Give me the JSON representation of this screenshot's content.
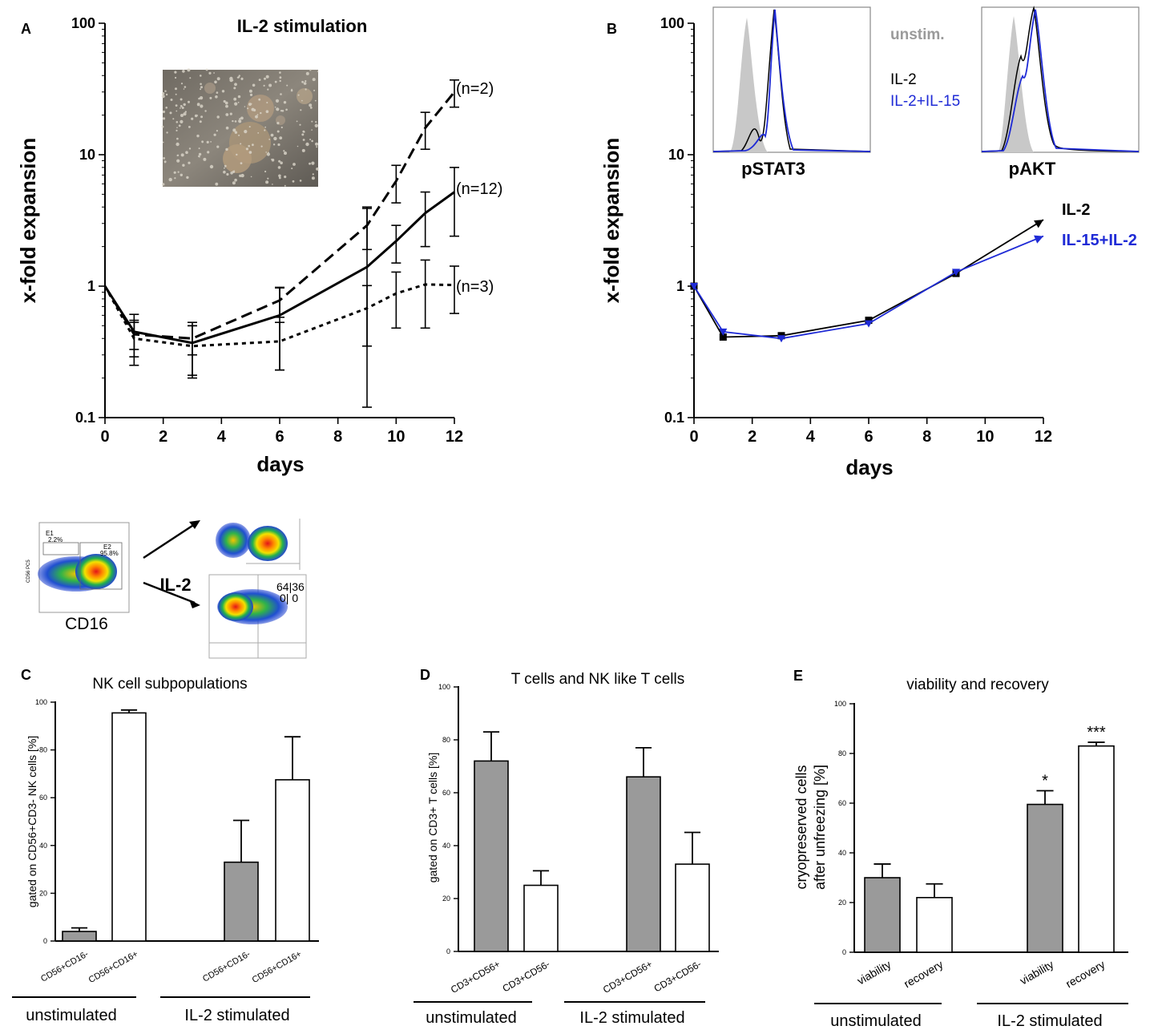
{
  "colors": {
    "ink": "#000000",
    "blue": "#1f2bd6",
    "gray_bar": "#9a9a9a",
    "unstim": "#9a9a9a",
    "hist_fill": "#c8c8c8"
  },
  "panels": {
    "A": "A",
    "B": "B",
    "C": "C",
    "D": "D",
    "E": "E"
  },
  "flow": {
    "il2": "IL-2",
    "cd16": "CD16",
    "y_axis": "CD56 PC5",
    "e1": "E1",
    "e1_pct": "2.2%",
    "e2": "E2",
    "e2_pct": "95.8%",
    "q_top": "64|36",
    "q_bot": "0| 0"
  },
  "chart_data": [
    {
      "id": "A",
      "type": "line",
      "title": "IL-2 stimulation",
      "xlabel": "days",
      "ylabel": "x-fold expansion",
      "yscale": "log",
      "xlim": [
        0,
        12
      ],
      "ylim": [
        0.1,
        100
      ],
      "xticks": [
        "0",
        "2",
        "4",
        "6",
        "8",
        "10",
        "12"
      ],
      "yticks": [
        "0.1",
        "1",
        "10",
        "100"
      ],
      "inset": "cell culture micrograph",
      "series": [
        {
          "name": "(n=2)",
          "style": "dashed",
          "x": [
            0,
            1,
            3,
            6,
            9,
            10,
            11,
            12
          ],
          "y": [
            1,
            0.43,
            0.4,
            0.78,
            2.9,
            6.3,
            16,
            30
          ],
          "err": [
            0,
            0.1,
            0.1,
            0.2,
            1.0,
            2.0,
            5,
            7
          ]
        },
        {
          "name": "(n=12)",
          "style": "solid",
          "x": [
            0,
            1,
            3,
            6,
            9,
            10,
            11,
            12
          ],
          "y": [
            1,
            0.45,
            0.37,
            0.6,
            1.4,
            2.2,
            3.6,
            5.2
          ],
          "err": [
            0,
            0.16,
            0.16,
            0.37,
            2.6,
            0.7,
            1.6,
            2.8
          ]
        },
        {
          "name": "(n=3)",
          "style": "dotted",
          "x": [
            0,
            1,
            3,
            6,
            9,
            10,
            11,
            12
          ],
          "y": [
            1,
            0.4,
            0.35,
            0.38,
            0.68,
            0.88,
            1.03,
            1.02
          ],
          "err": [
            0,
            0.15,
            0.15,
            0.15,
            0.33,
            0.4,
            0.55,
            0.4
          ]
        }
      ]
    },
    {
      "id": "B",
      "type": "line",
      "title": "",
      "xlabel": "days",
      "ylabel": "x-fold expansion",
      "yscale": "log",
      "xlim": [
        0,
        12
      ],
      "ylim": [
        0.1,
        100
      ],
      "xticks": [
        "0",
        "2",
        "4",
        "6",
        "8",
        "10",
        "12"
      ],
      "yticks": [
        "0.1",
        "1",
        "10",
        "100"
      ],
      "series": [
        {
          "name": "IL-2",
          "color": "#000000",
          "x": [
            0,
            1,
            3,
            6,
            9,
            12
          ],
          "y": [
            1,
            0.41,
            0.42,
            0.55,
            1.25,
            3.2
          ]
        },
        {
          "name": "IL-15+IL-2",
          "color": "#1f2bd6",
          "x": [
            0,
            1,
            3,
            6,
            9,
            12
          ],
          "y": [
            1,
            0.45,
            0.4,
            0.52,
            1.28,
            2.4
          ]
        }
      ],
      "inset_legend": [
        "unstim.",
        "IL-2",
        "IL-2+IL-15"
      ],
      "histograms": [
        "pSTAT3",
        "pAKT"
      ]
    },
    {
      "id": "C",
      "type": "bar",
      "title": "NK cell subpopulations",
      "ylabel": "gated on CD56+CD3- NK cells [%]",
      "ylim": [
        0,
        100
      ],
      "yticks": [
        "0",
        "20",
        "40",
        "60",
        "80",
        "100"
      ],
      "categories": [
        "CD56+CD16-",
        "CD56+CD16+",
        "CD56+CD16-",
        "CD56+CD16+"
      ],
      "values": [
        4,
        95.5,
        33,
        67.5
      ],
      "errors": [
        1.5,
        1.2,
        17.5,
        18
      ],
      "fills": [
        "gray",
        "white",
        "gray",
        "white"
      ],
      "groups": [
        "unstimulated",
        "IL-2 stimulated"
      ]
    },
    {
      "id": "D",
      "type": "bar",
      "title": "T cells and NK like T cells",
      "ylabel": "gated on CD3+ T cells [%]",
      "ylim": [
        0,
        100
      ],
      "yticks": [
        "0",
        "20",
        "40",
        "60",
        "80",
        "100"
      ],
      "categories": [
        "CD3+CD56+",
        "CD3+CD56-",
        "CD3+CD56+",
        "CD3+CD56-"
      ],
      "values": [
        72,
        25,
        66,
        33
      ],
      "errors": [
        11,
        5.5,
        11,
        12
      ],
      "fills": [
        "gray",
        "white",
        "gray",
        "white"
      ],
      "groups": [
        "unstimulated",
        "IL-2 stimulated"
      ]
    },
    {
      "id": "E",
      "type": "bar",
      "title": "viability and recovery",
      "ylabel_1": "cryopreserved cells",
      "ylabel_2": "after unfreezing [%]",
      "ylim": [
        0,
        100
      ],
      "yticks": [
        "0",
        "20",
        "40",
        "60",
        "80",
        "100"
      ],
      "categories": [
        "viability",
        "recovery",
        "viability",
        "recovery"
      ],
      "values": [
        30,
        22,
        59.5,
        83
      ],
      "errors": [
        5.5,
        5.5,
        5.5,
        1.5
      ],
      "significance": [
        "",
        "",
        "*",
        "***"
      ],
      "fills": [
        "gray",
        "white",
        "gray",
        "white"
      ],
      "groups": [
        "unstimulated",
        "IL-2 stimulated"
      ]
    }
  ]
}
